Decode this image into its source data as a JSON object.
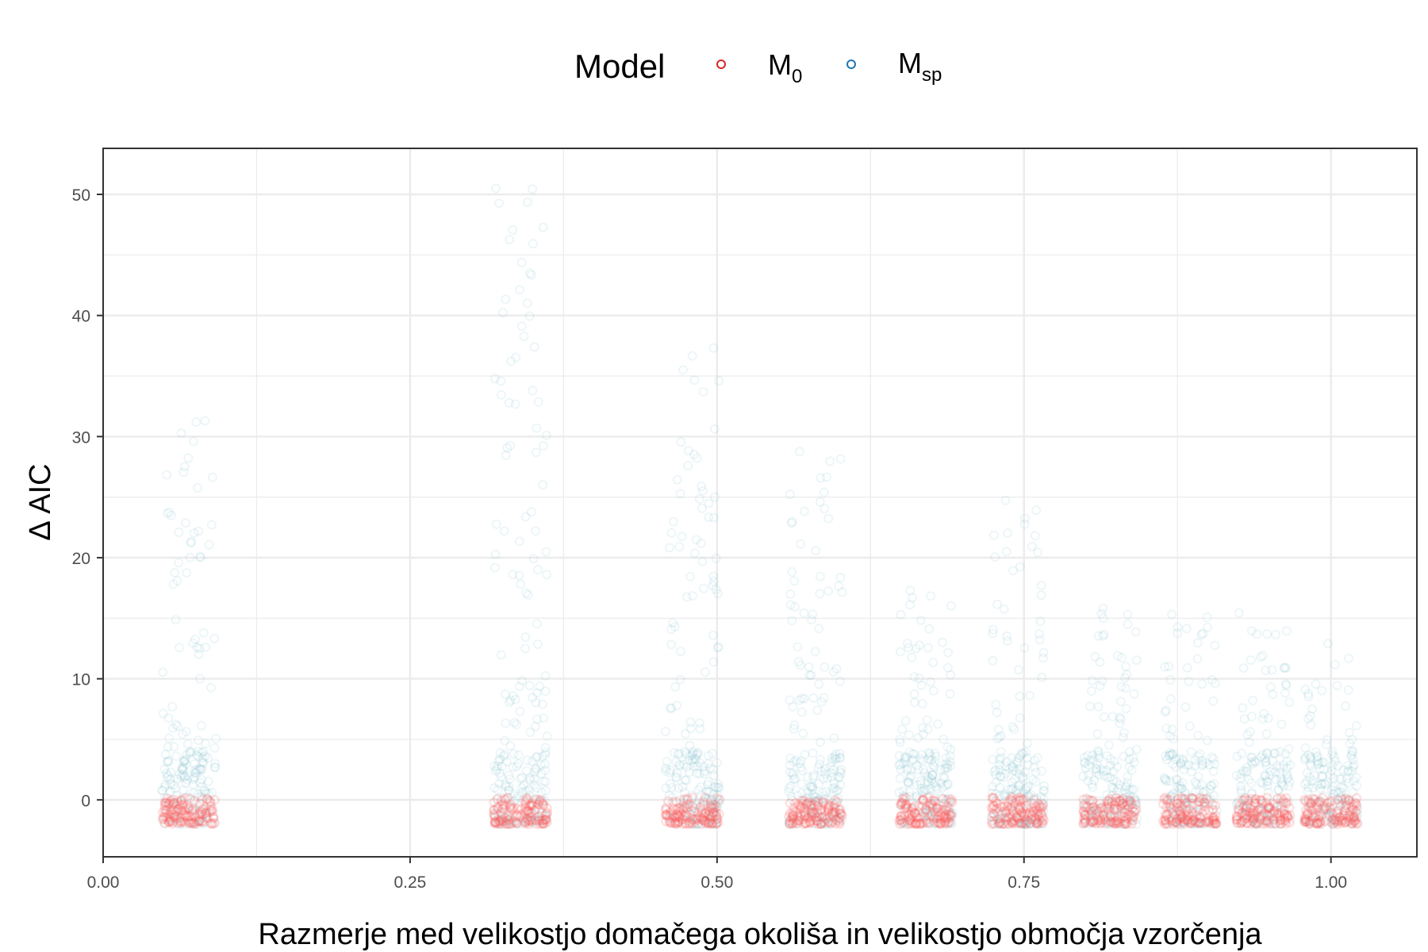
{
  "chart_data": {
    "type": "scatter",
    "xlabel": "Razmerje med velikostjo domačega okoliša in velikostjo območja vzorčenja",
    "ylabel": "Δ AIC",
    "xlim": [
      0,
      1.07
    ],
    "ylim": [
      -4.7,
      53.8
    ],
    "x_ticks": [
      "0.00",
      "0.25",
      "0.50",
      "0.75",
      "1.00"
    ],
    "x_tick_values": [
      0,
      0.25,
      0.5,
      0.75,
      1.0
    ],
    "y_ticks": [
      "0",
      "10",
      "20",
      "30",
      "40",
      "50"
    ],
    "y_tick_values": [
      0,
      10,
      20,
      30,
      40,
      50
    ],
    "grid": true,
    "legend": {
      "title": "Model",
      "position": "top",
      "entries": [
        {
          "main": "M",
          "sub": "0",
          "color": "#f8766d"
        },
        {
          "main": "M",
          "sub": "sp",
          "color": "#5aa6c1"
        }
      ]
    },
    "series": [
      {
        "name": "M0",
        "color": "#ff5a5a",
        "points_per_cluster": "approx. -2 to 0",
        "clusters": [
          {
            "x_center": 0.07,
            "x_spread": 0.022,
            "y_min": -2.0,
            "y_max": 0.2,
            "n": 120
          },
          {
            "x_center": 0.34,
            "x_spread": 0.022,
            "y_min": -2.0,
            "y_max": 0.2,
            "n": 120
          },
          {
            "x_center": 0.48,
            "x_spread": 0.022,
            "y_min": -2.0,
            "y_max": 0.2,
            "n": 120
          },
          {
            "x_center": 0.58,
            "x_spread": 0.022,
            "y_min": -2.0,
            "y_max": 0.0,
            "n": 120
          },
          {
            "x_center": 0.67,
            "x_spread": 0.022,
            "y_min": -2.0,
            "y_max": 0.2,
            "n": 120
          },
          {
            "x_center": 0.745,
            "x_spread": 0.022,
            "y_min": -2.0,
            "y_max": 0.2,
            "n": 120
          },
          {
            "x_center": 0.82,
            "x_spread": 0.022,
            "y_min": -2.0,
            "y_max": 0.2,
            "n": 120
          },
          {
            "x_center": 0.885,
            "x_spread": 0.022,
            "y_min": -2.0,
            "y_max": 0.2,
            "n": 120
          },
          {
            "x_center": 0.945,
            "x_spread": 0.022,
            "y_min": -2.0,
            "y_max": 0.2,
            "n": 120
          },
          {
            "x_center": 1.0,
            "x_spread": 0.022,
            "y_min": -2.0,
            "y_max": 0.2,
            "n": 120
          }
        ]
      },
      {
        "name": "Msp",
        "color": "#6fb6c9",
        "clusters": [
          {
            "x_center": 0.07,
            "x_spread": 0.022,
            "y_min": -2.0,
            "y_max": 31.5,
            "n": 110
          },
          {
            "x_center": 0.34,
            "x_spread": 0.022,
            "y_min": -2.0,
            "y_max": 51.5,
            "n": 130
          },
          {
            "x_center": 0.48,
            "x_spread": 0.022,
            "y_min": -2.0,
            "y_max": 37.5,
            "n": 120
          },
          {
            "x_center": 0.58,
            "x_spread": 0.022,
            "y_min": -2.0,
            "y_max": 31.0,
            "n": 110
          },
          {
            "x_center": 0.67,
            "x_spread": 0.022,
            "y_min": -2.0,
            "y_max": 18.5,
            "n": 110
          },
          {
            "x_center": 0.745,
            "x_spread": 0.022,
            "y_min": -2.0,
            "y_max": 25.0,
            "n": 100
          },
          {
            "x_center": 0.82,
            "x_spread": 0.022,
            "y_min": -2.0,
            "y_max": 19.5,
            "n": 90
          },
          {
            "x_center": 0.885,
            "x_spread": 0.022,
            "y_min": -2.0,
            "y_max": 15.5,
            "n": 80
          },
          {
            "x_center": 0.945,
            "x_spread": 0.022,
            "y_min": -2.0,
            "y_max": 16.0,
            "n": 80
          },
          {
            "x_center": 1.0,
            "x_spread": 0.022,
            "y_min": -2.0,
            "y_max": 13.0,
            "n": 80
          }
        ]
      }
    ]
  },
  "colors": {
    "m0_marker": "#ff5a5a",
    "msp_marker": "#6fb6c9",
    "legend_m0": "#d62728",
    "legend_msp": "#1f77b4",
    "grid": "#ebebeb",
    "panel_border": "#333333"
  }
}
